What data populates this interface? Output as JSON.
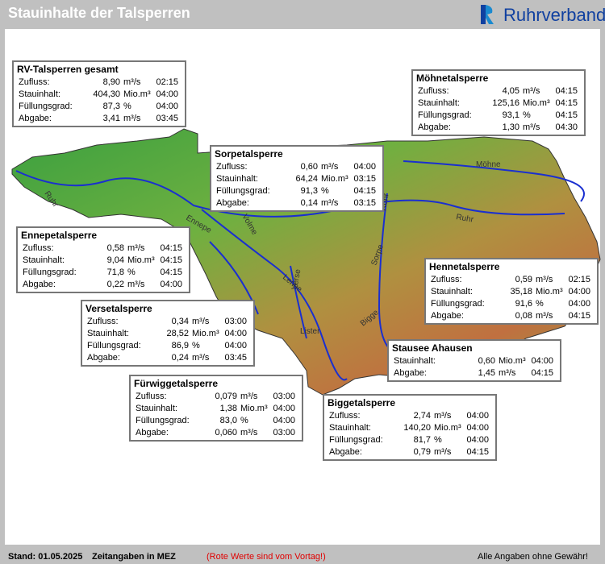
{
  "header": {
    "title": "Stauinhalte der Talsperren",
    "logo": "Ruhrverband"
  },
  "boxes": [
    {
      "title": "RV-Talsperren gesamt",
      "rows": [
        [
          "Zufluss:",
          "8,90",
          "m³/s",
          "02:15"
        ],
        [
          "Stauinhalt:",
          "404,30",
          "Mio.m³",
          "04:00"
        ],
        [
          "Füllungsgrad:",
          "87,3",
          "%",
          "04:00"
        ],
        [
          "Abgabe:",
          "3,41",
          "m³/s",
          "03:45"
        ]
      ]
    },
    {
      "title": "Möhnetalsperre",
      "rows": [
        [
          "Zufluss:",
          "4,05",
          "m³/s",
          "04:15"
        ],
        [
          "Stauinhalt:",
          "125,16",
          "Mio.m³",
          "04:15"
        ],
        [
          "Füllungsgrad:",
          "93,1",
          "%",
          "04:15"
        ],
        [
          "Abgabe:",
          "1,30",
          "m³/s",
          "04:30"
        ]
      ]
    },
    {
      "title": "Sorpetalsperre",
      "rows": [
        [
          "Zufluss:",
          "0,60",
          "m³/s",
          "04:00"
        ],
        [
          "Stauinhalt:",
          "64,24",
          "Mio.m³",
          "03:15"
        ],
        [
          "Füllungsgrad:",
          "91,3",
          "%",
          "04:15"
        ],
        [
          "Abgabe:",
          "0,14",
          "m³/s",
          "03:15"
        ]
      ]
    },
    {
      "title": "Ennepetalsperre",
      "rows": [
        [
          "Zufluss:",
          "0,58",
          "m³/s",
          "04:15"
        ],
        [
          "Stauinhalt:",
          "9,04",
          "Mio.m³",
          "04:15"
        ],
        [
          "Füllungsgrad:",
          "71,8",
          "%",
          "04:15"
        ],
        [
          "Abgabe:",
          "0,22",
          "m³/s",
          "04:00"
        ]
      ]
    },
    {
      "title": "Hennetalsperre",
      "rows": [
        [
          "Zufluss:",
          "0,59",
          "m³/s",
          "02:15"
        ],
        [
          "Stauinhalt:",
          "35,18",
          "Mio.m³",
          "04:00"
        ],
        [
          "Füllungsgrad:",
          "91,6",
          "%",
          "04:00"
        ],
        [
          "Abgabe:",
          "0,08",
          "m³/s",
          "04:15"
        ]
      ]
    },
    {
      "title": "Versetalsperre",
      "rows": [
        [
          "Zufluss:",
          "0,34",
          "m³/s",
          "03:00"
        ],
        [
          "Stauinhalt:",
          "28,52",
          "Mio.m³",
          "04:00"
        ],
        [
          "Füllungsgrad:",
          "86,9",
          "%",
          "04:00"
        ],
        [
          "Abgabe:",
          "0,24",
          "m³/s",
          "03:45"
        ]
      ]
    },
    {
      "title": "Stausee Ahausen",
      "rows": [
        [
          "Stauinhalt:",
          "0,60",
          "Mio.m³",
          "04:00"
        ],
        [
          "Abgabe:",
          "1,45",
          "m³/s",
          "04:15"
        ]
      ]
    },
    {
      "title": "Fürwiggetalsperre",
      "rows": [
        [
          "Zufluss:",
          "0,079",
          "m³/s",
          "03:00"
        ],
        [
          "Stauinhalt:",
          "1,38",
          "Mio.m³",
          "04:00"
        ],
        [
          "Füllungsgrad:",
          "83,0",
          "%",
          "04:00"
        ],
        [
          "Abgabe:",
          "0,060",
          "m³/s",
          "03:00"
        ]
      ]
    },
    {
      "title": "Biggetalsperre",
      "rows": [
        [
          "Zufluss:",
          "2,74",
          "m³/s",
          "04:00"
        ],
        [
          "Stauinhalt:",
          "140,20",
          "Mio.m³",
          "04:00"
        ],
        [
          "Füllungsgrad:",
          "81,7",
          "%",
          "04:00"
        ],
        [
          "Abgabe:",
          "0,79",
          "m³/s",
          "04:15"
        ]
      ]
    }
  ],
  "map": {
    "labels": [
      "Ruhr",
      "Ennepe",
      "Volme",
      "Ruhr",
      "Möhne",
      "Lenne",
      "Verse",
      "Sorpe",
      "Bigge",
      "Lister",
      "Röhr"
    ]
  },
  "footer": {
    "date": "Stand: 01.05.2025",
    "zone": "Zeitangaben in MEZ",
    "note": "(Rote Werte sind vom Vortag!)",
    "disclaimer": "Alle Angaben ohne Gewähr!"
  }
}
